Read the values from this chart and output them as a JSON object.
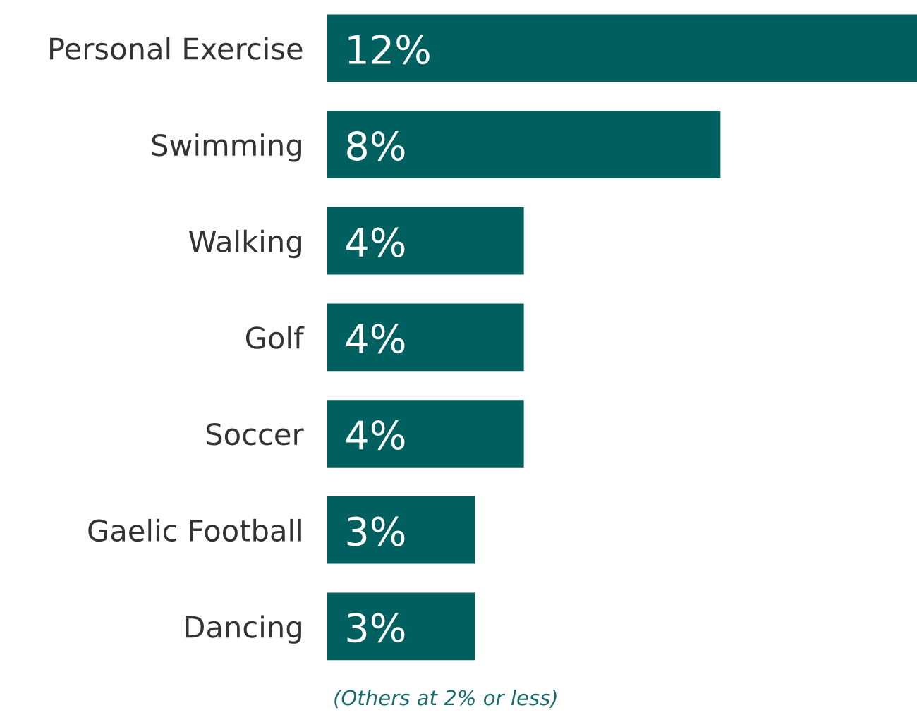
{
  "chart_data": {
    "type": "bar",
    "orientation": "horizontal",
    "categories": [
      "Personal Exercise",
      "Swimming",
      "Walking",
      "Golf",
      "Soccer",
      "Gaelic Football",
      "Dancing"
    ],
    "values": [
      12,
      8,
      4,
      4,
      4,
      3,
      3
    ],
    "value_labels": [
      "12%",
      "8%",
      "4%",
      "4%",
      "4%",
      "3%",
      "3%"
    ],
    "color": "#005f5f",
    "annotations": [
      "(Others at 2% or less)"
    ]
  }
}
